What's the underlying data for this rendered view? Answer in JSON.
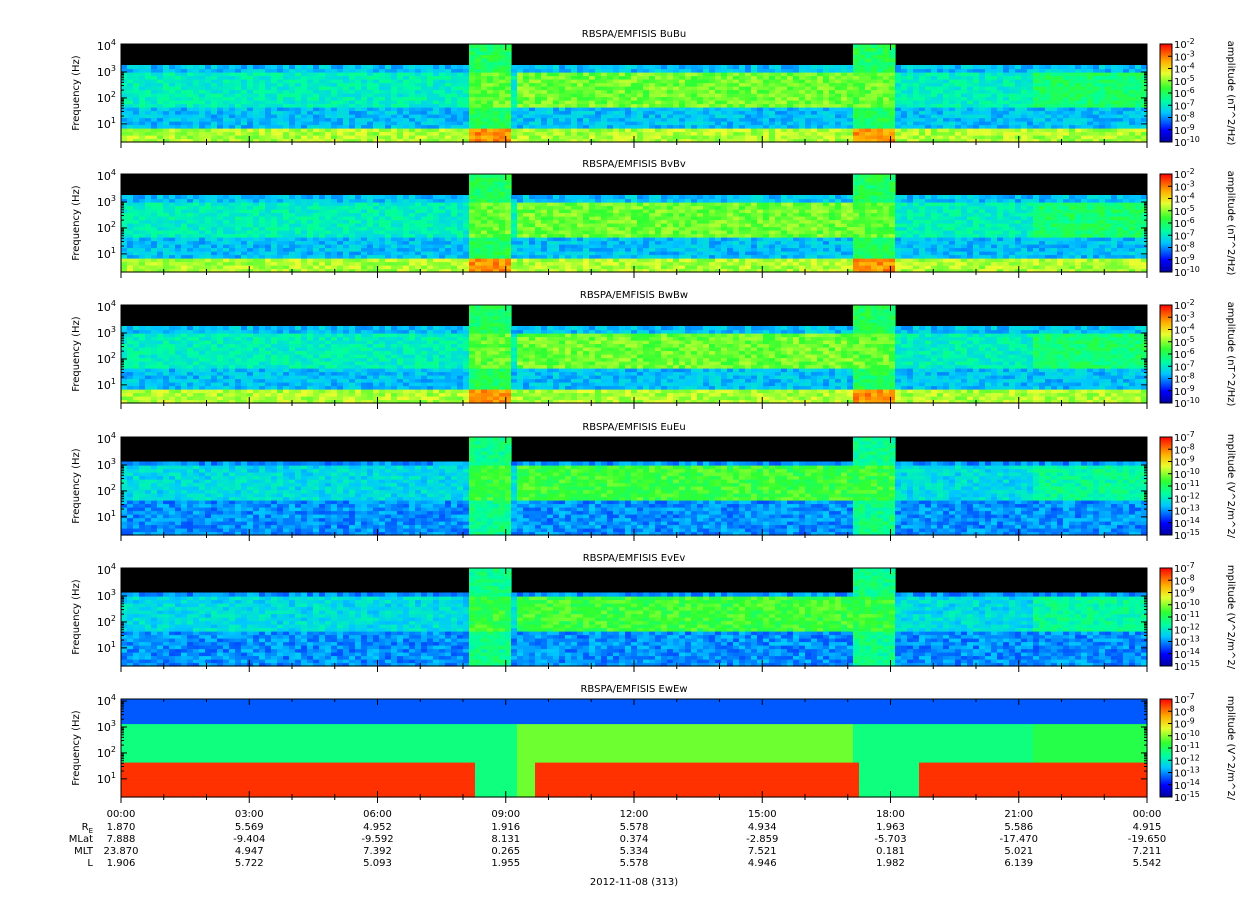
{
  "chart_data": [
    {
      "type": "heatmap",
      "title": "RBSPA/EMFISIS  BuBu",
      "ylabel": "Frequency (Hz)",
      "yscale": "log",
      "ylim": [
        2,
        12000
      ],
      "yticks": [
        {
          "v": 10,
          "label": "10",
          "exp": "1"
        },
        {
          "v": 100,
          "label": "10",
          "exp": "2"
        },
        {
          "v": 1000,
          "label": "10",
          "exp": "3"
        },
        {
          "v": 10000,
          "label": "10",
          "exp": "4"
        }
      ],
      "colorbar": {
        "label": "amplitude (nT^2/Hz)",
        "scale": "log",
        "min_exp": -10,
        "max_exp": -2,
        "ticks": [
          {
            "label": "10",
            "exp": "-2"
          },
          {
            "label": "10",
            "exp": "-3"
          },
          {
            "label": "10",
            "exp": "-4"
          },
          {
            "label": "10",
            "exp": "-5"
          },
          {
            "label": "10",
            "exp": "-6"
          },
          {
            "label": "10",
            "exp": "-7"
          },
          {
            "label": "10",
            "exp": "-8"
          },
          {
            "label": "10",
            "exp": "-9"
          },
          {
            "label": "10",
            "exp": "-10"
          }
        ]
      }
    },
    {
      "type": "heatmap",
      "title": "RBSPA/EMFISIS  BvBv",
      "ylabel": "Frequency (Hz)",
      "yscale": "log",
      "ylim": [
        2,
        12000
      ],
      "yticks": [
        {
          "v": 10,
          "label": "10",
          "exp": "1"
        },
        {
          "v": 100,
          "label": "10",
          "exp": "2"
        },
        {
          "v": 1000,
          "label": "10",
          "exp": "3"
        },
        {
          "v": 10000,
          "label": "10",
          "exp": "4"
        }
      ],
      "colorbar": {
        "label": "amplitude (nT^2/Hz)",
        "scale": "log",
        "min_exp": -10,
        "max_exp": -2,
        "ticks": [
          {
            "label": "10",
            "exp": "-2"
          },
          {
            "label": "10",
            "exp": "-3"
          },
          {
            "label": "10",
            "exp": "-4"
          },
          {
            "label": "10",
            "exp": "-5"
          },
          {
            "label": "10",
            "exp": "-6"
          },
          {
            "label": "10",
            "exp": "-7"
          },
          {
            "label": "10",
            "exp": "-8"
          },
          {
            "label": "10",
            "exp": "-9"
          },
          {
            "label": "10",
            "exp": "-10"
          }
        ]
      }
    },
    {
      "type": "heatmap",
      "title": "RBSPA/EMFISIS  BwBw",
      "ylabel": "Frequency (Hz)",
      "yscale": "log",
      "ylim": [
        2,
        12000
      ],
      "yticks": [
        {
          "v": 10,
          "label": "10",
          "exp": "1"
        },
        {
          "v": 100,
          "label": "10",
          "exp": "2"
        },
        {
          "v": 1000,
          "label": "10",
          "exp": "3"
        },
        {
          "v": 10000,
          "label": "10",
          "exp": "4"
        }
      ],
      "colorbar": {
        "label": "amplitude (nT^2/Hz)",
        "scale": "log",
        "min_exp": -10,
        "max_exp": -2,
        "ticks": [
          {
            "label": "10",
            "exp": "-2"
          },
          {
            "label": "10",
            "exp": "-3"
          },
          {
            "label": "10",
            "exp": "-4"
          },
          {
            "label": "10",
            "exp": "-5"
          },
          {
            "label": "10",
            "exp": "-6"
          },
          {
            "label": "10",
            "exp": "-7"
          },
          {
            "label": "10",
            "exp": "-8"
          },
          {
            "label": "10",
            "exp": "-9"
          },
          {
            "label": "10",
            "exp": "-10"
          }
        ]
      }
    },
    {
      "type": "heatmap",
      "title": "RBSPA/EMFISIS  EuEu",
      "ylabel": "Frequency (Hz)",
      "yscale": "log",
      "ylim": [
        2,
        12000
      ],
      "yticks": [
        {
          "v": 10,
          "label": "10",
          "exp": "1"
        },
        {
          "v": 100,
          "label": "10",
          "exp": "2"
        },
        {
          "v": 1000,
          "label": "10",
          "exp": "3"
        },
        {
          "v": 10000,
          "label": "10",
          "exp": "4"
        }
      ],
      "colorbar": {
        "label": "mplitude (V^2/m^2/",
        "scale": "log",
        "min_exp": -15,
        "max_exp": -7,
        "ticks": [
          {
            "label": "10",
            "exp": "-7"
          },
          {
            "label": "10",
            "exp": "-8"
          },
          {
            "label": "10",
            "exp": "-9"
          },
          {
            "label": "10",
            "exp": "-10"
          },
          {
            "label": "10",
            "exp": "-11"
          },
          {
            "label": "10",
            "exp": "-12"
          },
          {
            "label": "10",
            "exp": "-13"
          },
          {
            "label": "10",
            "exp": "-14"
          },
          {
            "label": "10",
            "exp": "-15"
          }
        ]
      }
    },
    {
      "type": "heatmap",
      "title": "RBSPA/EMFISIS  EvEv",
      "ylabel": "Frequency (Hz)",
      "yscale": "log",
      "ylim": [
        2,
        12000
      ],
      "yticks": [
        {
          "v": 10,
          "label": "10",
          "exp": "1"
        },
        {
          "v": 100,
          "label": "10",
          "exp": "2"
        },
        {
          "v": 1000,
          "label": "10",
          "exp": "3"
        },
        {
          "v": 10000,
          "label": "10",
          "exp": "4"
        }
      ],
      "colorbar": {
        "label": "mplitude (V^2/m^2/",
        "scale": "log",
        "min_exp": -15,
        "max_exp": -7,
        "ticks": [
          {
            "label": "10",
            "exp": "-7"
          },
          {
            "label": "10",
            "exp": "-8"
          },
          {
            "label": "10",
            "exp": "-9"
          },
          {
            "label": "10",
            "exp": "-10"
          },
          {
            "label": "10",
            "exp": "-11"
          },
          {
            "label": "10",
            "exp": "-12"
          },
          {
            "label": "10",
            "exp": "-13"
          },
          {
            "label": "10",
            "exp": "-14"
          },
          {
            "label": "10",
            "exp": "-15"
          }
        ]
      }
    },
    {
      "type": "heatmap",
      "title": "RBSPA/EMFISIS  EwEw",
      "ylabel": "Frequency (Hz)",
      "yscale": "log",
      "ylim": [
        2,
        12000
      ],
      "yticks": [
        {
          "v": 10,
          "label": "10",
          "exp": "1"
        },
        {
          "v": 100,
          "label": "10",
          "exp": "2"
        },
        {
          "v": 1000,
          "label": "10",
          "exp": "3"
        },
        {
          "v": 10000,
          "label": "10",
          "exp": "4"
        }
      ],
      "colorbar": {
        "label": "mplitude (V^2/m^2/",
        "scale": "log",
        "min_exp": -15,
        "max_exp": -7,
        "ticks": [
          {
            "label": "10",
            "exp": "-7"
          },
          {
            "label": "10",
            "exp": "-8"
          },
          {
            "label": "10",
            "exp": "-9"
          },
          {
            "label": "10",
            "exp": "-10"
          },
          {
            "label": "10",
            "exp": "-11"
          },
          {
            "label": "10",
            "exp": "-12"
          },
          {
            "label": "10",
            "exp": "-13"
          },
          {
            "label": "10",
            "exp": "-14"
          },
          {
            "label": "10",
            "exp": "-15"
          }
        ]
      }
    }
  ],
  "x_axis": {
    "range_hours": [
      0,
      24
    ],
    "tick_labels": [
      "00:00",
      "03:00",
      "06:00",
      "09:00",
      "12:00",
      "15:00",
      "18:00",
      "21:00",
      "00:00"
    ],
    "date_label": "2012-11-08 (313)",
    "ephemeris": [
      {
        "label": "R",
        "sub": "E",
        "values": [
          "1.870",
          "5.569",
          "4.952",
          "1.916",
          "5.578",
          "4.934",
          "1.963",
          "5.586",
          "4.915"
        ]
      },
      {
        "label": "MLat",
        "sub": "",
        "values": [
          "7.888",
          "-9.404",
          "-9.592",
          "8.131",
          "0.374",
          "-2.859",
          "-5.703",
          "-17.470",
          "-19.650"
        ]
      },
      {
        "label": "MLT",
        "sub": "",
        "values": [
          "23.870",
          "4.947",
          "7.392",
          "0.265",
          "5.334",
          "7.521",
          "0.181",
          "5.021",
          "7.211"
        ]
      },
      {
        "label": "L",
        "sub": "",
        "values": [
          "1.906",
          "5.722",
          "5.093",
          "1.955",
          "5.578",
          "4.946",
          "1.982",
          "6.139",
          "5.542"
        ]
      }
    ]
  }
}
